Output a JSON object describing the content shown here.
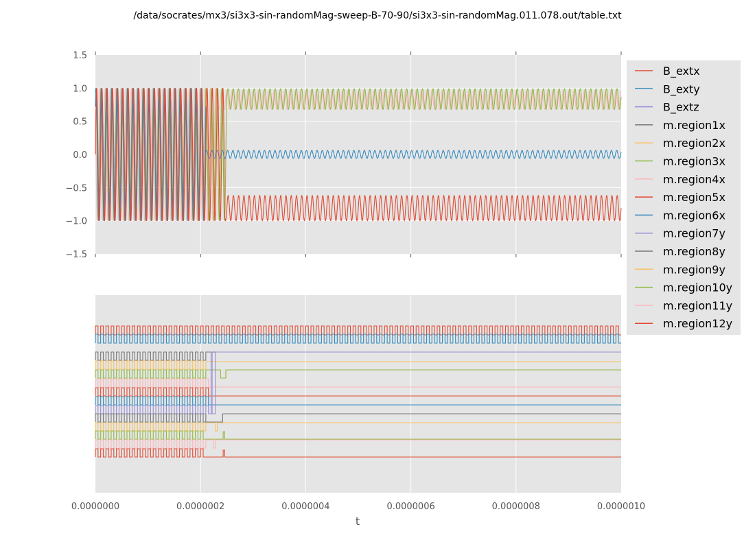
{
  "chart_data": {
    "title": "/data/socrates/mx3/si3x3-sin-randomMag-sweep-B-70-90/si3x3-sin-randomMag.011.078.out/table.txt",
    "xlabel": "t",
    "x_ticks": [
      "0.0000000",
      "0.0000002",
      "0.0000004",
      "0.0000006",
      "0.0000008",
      "0.0000010"
    ],
    "legend_position": "right, outside plot area",
    "grid": true,
    "subplots": [
      {
        "type": "line",
        "role": "raw values",
        "xlim": [
          0,
          1e-06
        ],
        "ylim": [
          -1.5,
          1.5
        ],
        "y_ticks": [
          "1.5",
          "1.0",
          "0.5",
          "0.0",
          "−0.5",
          "−1.0",
          "−1.5"
        ],
        "switch_time": 2.4e-07,
        "oscillation_period": 1e-08,
        "series_behavior": [
          {
            "name": "B_extx",
            "before": "sine between -1 and 1",
            "after": "oscillates between -1.0 and -0.62"
          },
          {
            "name": "B_exty",
            "before": "sine between -1 and 1",
            "after": "oscillates between -0.06 and 0.06"
          },
          {
            "name": "m.region3x",
            "before": "sine between -1 and 1",
            "after": "oscillates between 0.68 and 0.99"
          },
          {
            "name": "m.region4x",
            "before": "sine between -1 and 1",
            "after": "oscillates between 0.68 and 0.96"
          }
        ]
      },
      {
        "type": "line",
        "role": "stacked binary traces (no y tick labels)",
        "xlim": [
          0,
          1e-06
        ],
        "series_behavior": [
          {
            "name": "m.region12y",
            "before": "square wave",
            "after": "square wave continues"
          },
          {
            "name": "B_exty",
            "before": "square wave",
            "after": "square wave continues"
          },
          {
            "name": "m.region1x",
            "before": "square wave until 2.1e-7",
            "after": "flat"
          },
          {
            "name": "m.region2x",
            "before": "square wave until 2.1e-7",
            "after": "flat"
          },
          {
            "name": "m.region3x",
            "before": "square wave until 2.1e-7",
            "after": "flat with dip near 2.4e-7"
          },
          {
            "name": "m.region4x",
            "before": "square wave until 2.2e-7",
            "after": "flat"
          },
          {
            "name": "m.region5x",
            "before": "square wave until 2.2e-7",
            "after": "flat"
          },
          {
            "name": "m.region6x",
            "before": "square wave until 2.2e-7",
            "after": "flat"
          },
          {
            "name": "m.region7y",
            "before": "square wave until 2.2e-7",
            "after": "flat"
          },
          {
            "name": "m.region8y",
            "before": "square wave until 2.1e-7",
            "after": "flat after step near 2.4e-7"
          },
          {
            "name": "m.region9y",
            "before": "square wave until 2.1e-7",
            "after": "flat with dip near 2.3e-7"
          },
          {
            "name": "m.region10y",
            "before": "square wave until 2.1e-7",
            "after": "flat with spike near 2.4e-7"
          },
          {
            "name": "m.region11y",
            "before": "square wave until 2.1e-7",
            "after": "flat with dip near 2.3e-7"
          },
          {
            "name": "m.region12y",
            "before": "square wave until 2.1e-7",
            "after": "flat with spike near 2.4e-7"
          }
        ]
      }
    ],
    "series": [
      {
        "name": "B_extx",
        "color": "#E24A33"
      },
      {
        "name": "B_exty",
        "color": "#348ABD"
      },
      {
        "name": "B_extz",
        "color": "#988ED5"
      },
      {
        "name": "m.region1x",
        "color": "#777777"
      },
      {
        "name": "m.region2x",
        "color": "#FBC15E"
      },
      {
        "name": "m.region3x",
        "color": "#8EBA42"
      },
      {
        "name": "m.region4x",
        "color": "#FFB5B8"
      },
      {
        "name": "m.region5x",
        "color": "#E24A33"
      },
      {
        "name": "m.region6x",
        "color": "#348ABD"
      },
      {
        "name": "m.region7y",
        "color": "#988ED5"
      },
      {
        "name": "m.region8y",
        "color": "#777777"
      },
      {
        "name": "m.region9y",
        "color": "#FBC15E"
      },
      {
        "name": "m.region10y",
        "color": "#8EBA42"
      },
      {
        "name": "m.region11y",
        "color": "#FFB5B8"
      },
      {
        "name": "m.region12y",
        "color": "#E24A33"
      }
    ]
  }
}
